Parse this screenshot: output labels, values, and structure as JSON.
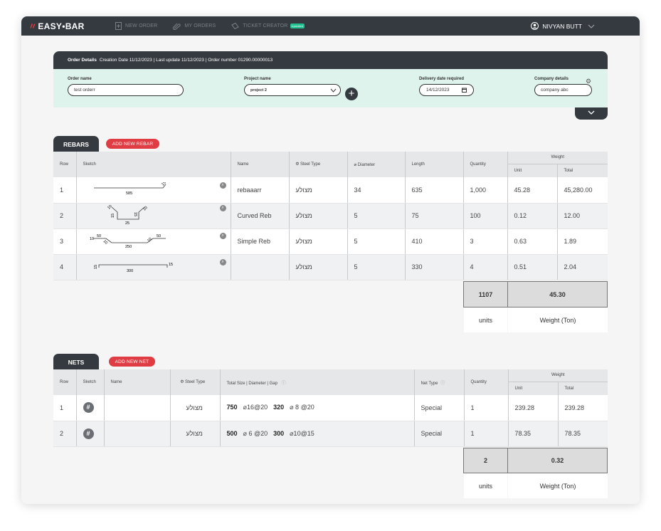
{
  "nav": {
    "logo": "EASY•BAR",
    "new_order": "NEW ORDER",
    "my_orders": "MY ORDERS",
    "ticket_creator": "TICKET CREATOR",
    "ticket_badge": "Updated",
    "user_name": "NIVYAN BUTT"
  },
  "order": {
    "header_label": "Order Details",
    "header_info": "Creation Date 11/12/2023 | Last update 11/12/2023 | Order number 01290.00000013",
    "order_name_label": "Order name",
    "order_name_value": "test orderr",
    "project_label": "Project name",
    "project_value": "project 2",
    "delivery_label": "Delivery date required",
    "delivery_value": "14/12/2023",
    "company_label": "Company details",
    "company_value": "company abc"
  },
  "rebars": {
    "tab": "REBARS",
    "add_button": "ADD NEW REBAR",
    "headers": {
      "row": "Row",
      "sketch": "Sketch",
      "name": "Name",
      "steel": "Steel Type",
      "diameter": "Diameter",
      "length": "Length",
      "quantity": "Quantity",
      "weight": "Weight",
      "unit": "Unit",
      "total": "Total"
    },
    "rows": [
      {
        "row": "1",
        "name": "rebaaarr",
        "steel": "מצולע",
        "diameter": "34",
        "length": "635",
        "quantity": "1,000",
        "unit": "45.28",
        "total": "45,280.00",
        "sk": [
          "585",
          "15"
        ]
      },
      {
        "row": "2",
        "name": "Curved Reb",
        "steel": "מצולע",
        "diameter": "5",
        "length": "75",
        "quantity": "100",
        "unit": "0.12",
        "total": "12.00",
        "sk": [
          "10",
          "15",
          "25",
          "15",
          "10"
        ]
      },
      {
        "row": "3",
        "name": "Simple Reb",
        "steel": "מצולע",
        "diameter": "5",
        "length": "410",
        "quantity": "3",
        "unit": "0.63",
        "total": "1.89",
        "sk": [
          "10",
          "50",
          "10",
          "250",
          "10",
          "50"
        ]
      },
      {
        "row": "4",
        "name": "",
        "steel": "מצולע",
        "diameter": "5",
        "length": "330",
        "quantity": "4",
        "unit": "0.51",
        "total": "2.04",
        "sk": [
          "15",
          "300",
          "15"
        ]
      }
    ],
    "sum_qty": "1107",
    "sum_weight": "45.30",
    "units_label": "units",
    "weight_label": "Weight (Ton)"
  },
  "nets": {
    "tab": "NETS",
    "add_button": "ADD NEW NET",
    "headers": {
      "row": "Row",
      "sketch": "Sketch",
      "name": "Name",
      "steel": "Steel Type",
      "size": "Total Size | Diameter | Gap",
      "nettype": "Net Type",
      "quantity": "Quantity",
      "weight": "Weight",
      "unit": "Unit",
      "total": "Total"
    },
    "rows": [
      {
        "row": "1",
        "name": "",
        "steel": "מצולע",
        "s1": "750",
        "d1": "⌀16@20",
        "s2": "320",
        "d2": "⌀ 8 @20",
        "type": "Special",
        "quantity": "1",
        "unit": "239.28",
        "total": "239.28"
      },
      {
        "row": "2",
        "name": "",
        "steel": "מצולע",
        "s1": "500",
        "d1": "⌀ 6 @20",
        "s2": "300",
        "d2": "⌀10@15",
        "type": "Special",
        "quantity": "1",
        "unit": "78.35",
        "total": "78.35"
      }
    ],
    "sum_qty": "2",
    "sum_weight": "0.32",
    "units_label": "units",
    "weight_label": "Weight (Ton)"
  }
}
